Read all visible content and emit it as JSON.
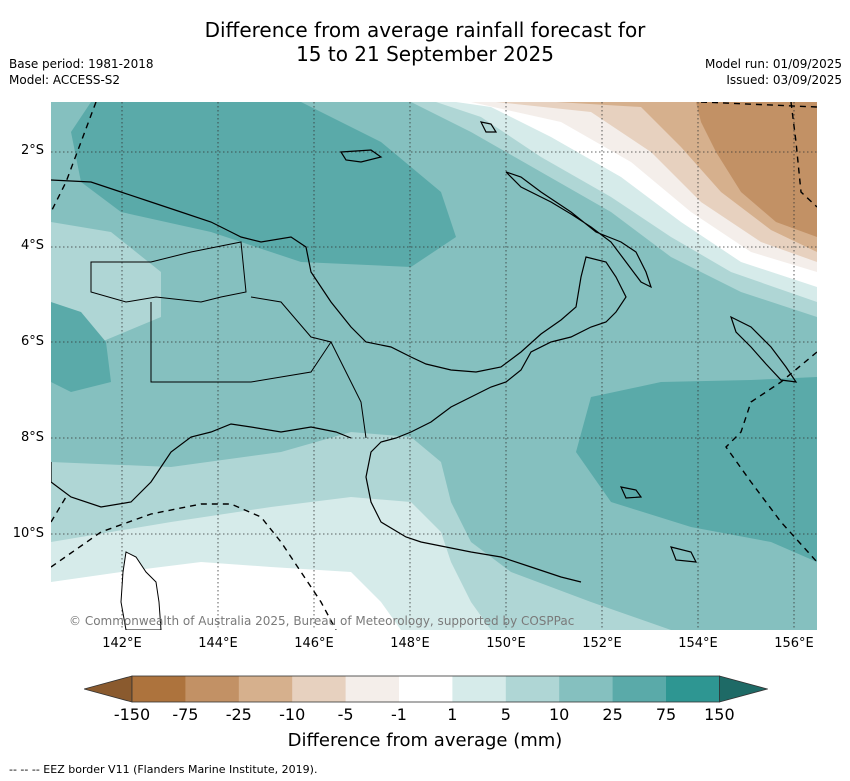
{
  "title_line1": "Difference from average rainfall forecast for",
  "title_line2": "15 to 21 September 2025",
  "base_period": "Base period: 1981-2018",
  "model": "Model: ACCESS-S2",
  "model_run": "Model run: 01/09/2025",
  "issued": "Issued: 03/09/2025",
  "copyright": "© Commonwealth of Australia 2025, Bureau of Meteorology, supported by COSPPac",
  "lon_labels": [
    "142°E",
    "144°E",
    "146°E",
    "148°E",
    "150°E",
    "152°E",
    "154°E",
    "156°E"
  ],
  "lat_labels": [
    "2°S",
    "4°S",
    "6°S",
    "8°S",
    "10°S"
  ],
  "colorbar": {
    "ticks": [
      "-150",
      "-75",
      "-25",
      "-10",
      "-5",
      "-1",
      "1",
      "5",
      "10",
      "25",
      "75",
      "150"
    ],
    "colors": [
      "#8a5a2e",
      "#ad733d",
      "#c29165",
      "#d6b08d",
      "#e7d1bf",
      "#f4eeea",
      "#ffffff",
      "#d6ebea",
      "#afd6d5",
      "#85c0bf",
      "#5aaaa9",
      "#2e9692",
      "#1e6a66"
    ],
    "label": "Difference from average (mm)"
  },
  "footnote": "-- -- -- EEZ border V11 (Flanders Marine Institute, 2019)."
}
